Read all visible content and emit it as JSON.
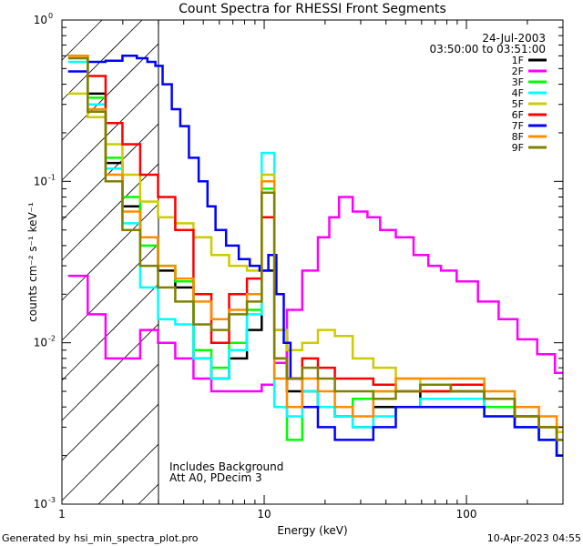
{
  "chart_data": {
    "type": "line",
    "title": "Count Spectra for RHESSI Front Segments",
    "xlabel": "Energy (keV)",
    "ylabel": "counts cm⁻² s⁻¹ keV⁻¹",
    "xscale": "log",
    "yscale": "log",
    "xlim": [
      1.0,
      300
    ],
    "ylim": [
      0.001,
      1.0
    ],
    "x_ticks": [
      {
        "value": 1,
        "label": "1"
      },
      {
        "value": 10,
        "label": "10"
      },
      {
        "value": 100,
        "label": "100"
      }
    ],
    "y_ticks": [
      {
        "value": 0.001,
        "mant": "10",
        "exp": "-3"
      },
      {
        "value": 0.01,
        "mant": "10",
        "exp": "-2"
      },
      {
        "value": 0.1,
        "mant": "10",
        "exp": "-1"
      },
      {
        "value": 1.0,
        "mant": "10",
        "exp": "0"
      }
    ],
    "shaded_region": {
      "x_from": 1.0,
      "x_to": 3.0,
      "style": "diagonal-hatch"
    },
    "legend_position": "top-right",
    "date": "24-Jul-2003",
    "time_range": "03:50:00 to 03:51:00",
    "annotations": [
      "Includes Background",
      "Att A0, PDecim 3"
    ],
    "series": [
      {
        "name": "1F",
        "color": "#000000",
        "x": [
          1.2,
          1.5,
          1.8,
          2.2,
          2.7,
          3.3,
          4.0,
          5.0,
          6.0,
          7.5,
          9.0,
          10.5,
          12.0,
          14.0,
          17.0,
          20.0,
          25.0,
          30.0,
          40.0,
          50.0,
          70.0,
          100.0,
          150.0,
          200.0,
          260.0,
          300.0
        ],
        "y": [
          0.6,
          0.35,
          0.13,
          0.07,
          0.045,
          0.028,
          0.022,
          0.008,
          0.006,
          0.008,
          0.012,
          0.028,
          0.012,
          0.005,
          0.005,
          0.004,
          0.0035,
          0.003,
          0.004,
          0.004,
          0.005,
          0.005,
          0.004,
          0.003,
          0.0025,
          0.002
        ]
      },
      {
        "name": "2F",
        "color": "#ff00ff",
        "x": [
          1.2,
          1.5,
          1.8,
          2.2,
          2.7,
          3.3,
          4.0,
          5.0,
          6.0,
          7.5,
          9.0,
          10.5,
          12.0,
          14.0,
          17.0,
          20.0,
          22.0,
          25.0,
          30.0,
          35.0,
          40.0,
          50.0,
          60.0,
          70.0,
          80.0,
          100.0,
          130.0,
          160.0,
          200.0,
          250.0,
          300.0
        ],
        "y": [
          0.026,
          0.015,
          0.008,
          0.008,
          0.012,
          0.01,
          0.008,
          0.006,
          0.005,
          0.005,
          0.005,
          0.0055,
          0.0075,
          0.016,
          0.028,
          0.045,
          0.06,
          0.08,
          0.065,
          0.06,
          0.05,
          0.045,
          0.035,
          0.03,
          0.028,
          0.024,
          0.018,
          0.014,
          0.0105,
          0.0085,
          0.0065
        ]
      },
      {
        "name": "3F",
        "color": "#00ff00",
        "x": [
          1.2,
          1.5,
          1.8,
          2.2,
          2.7,
          3.3,
          4.0,
          5.0,
          6.0,
          7.5,
          9.0,
          10.5,
          12.0,
          14.0,
          17.0,
          20.0,
          25.0,
          30.0,
          40.0,
          50.0,
          70.0,
          100.0,
          150.0,
          200.0,
          260.0,
          300.0
        ],
        "y": [
          0.6,
          0.33,
          0.14,
          0.08,
          0.04,
          0.03,
          0.024,
          0.009,
          0.007,
          0.01,
          0.016,
          0.09,
          0.004,
          0.0025,
          0.004,
          0.004,
          0.0035,
          0.0045,
          0.005,
          0.005,
          0.0055,
          0.0055,
          0.004,
          0.0035,
          0.003,
          0.0025
        ]
      },
      {
        "name": "4F",
        "color": "#00ffff",
        "x": [
          1.2,
          1.5,
          1.8,
          2.2,
          2.7,
          3.3,
          4.0,
          5.0,
          6.0,
          7.5,
          9.0,
          10.5,
          12.0,
          14.0,
          17.0,
          20.0,
          25.0,
          30.0,
          40.0,
          50.0,
          70.0,
          100.0,
          150.0,
          200.0,
          260.0,
          300.0
        ],
        "y": [
          0.55,
          0.3,
          0.12,
          0.055,
          0.022,
          0.014,
          0.013,
          0.008,
          0.006,
          0.009,
          0.015,
          0.15,
          0.004,
          0.0035,
          0.005,
          0.004,
          0.0035,
          0.003,
          0.0035,
          0.004,
          0.0045,
          0.0045,
          0.0035,
          0.003,
          0.0025,
          0.002
        ]
      },
      {
        "name": "5F",
        "color": "#cccc00",
        "x": [
          1.2,
          1.5,
          1.8,
          2.2,
          2.7,
          3.3,
          4.0,
          5.0,
          6.0,
          7.5,
          9.0,
          10.5,
          12.0,
          14.0,
          17.0,
          20.0,
          25.0,
          30.0,
          40.0,
          50.0,
          70.0,
          100.0,
          150.0,
          200.0,
          260.0,
          300.0
        ],
        "y": [
          0.35,
          0.25,
          0.17,
          0.11,
          0.075,
          0.06,
          0.055,
          0.045,
          0.035,
          0.03,
          0.028,
          0.11,
          0.012,
          0.009,
          0.01,
          0.012,
          0.011,
          0.008,
          0.007,
          0.006,
          0.005,
          0.0055,
          0.0045,
          0.0035,
          0.003,
          0.0028
        ]
      },
      {
        "name": "6F",
        "color": "#ff0000",
        "x": [
          1.2,
          1.5,
          1.8,
          2.2,
          2.7,
          3.3,
          4.0,
          5.0,
          6.0,
          7.5,
          9.0,
          10.5,
          12.0,
          14.0,
          17.0,
          20.0,
          25.0,
          30.0,
          40.0,
          50.0,
          70.0,
          100.0,
          150.0,
          200.0,
          260.0,
          300.0
        ],
        "y": [
          0.6,
          0.45,
          0.23,
          0.17,
          0.11,
          0.08,
          0.05,
          0.02,
          0.01,
          0.02,
          0.025,
          0.06,
          0.008,
          0.006,
          0.008,
          0.007,
          0.006,
          0.006,
          0.0055,
          0.005,
          0.005,
          0.0055,
          0.0045,
          0.0035,
          0.003,
          0.0025
        ]
      },
      {
        "name": "7F",
        "color": "#0000ff",
        "x": [
          1.2,
          1.5,
          1.8,
          2.2,
          2.5,
          2.8,
          3.0,
          3.3,
          3.7,
          4.0,
          4.5,
          5.0,
          5.5,
          6.0,
          7.0,
          8.0,
          9.0,
          10.0,
          11.0,
          12.0,
          13.0,
          14.0,
          17.0,
          20.0,
          25.0,
          30.0,
          40.0,
          50.0,
          70.0,
          100.0,
          150.0,
          200.0,
          260.0,
          300.0
        ],
        "y": [
          0.48,
          0.55,
          0.56,
          0.6,
          0.58,
          0.55,
          0.52,
          0.4,
          0.28,
          0.22,
          0.14,
          0.1,
          0.07,
          0.05,
          0.04,
          0.033,
          0.03,
          0.028,
          0.035,
          0.02,
          0.01,
          0.006,
          0.004,
          0.003,
          0.0025,
          0.0025,
          0.003,
          0.004,
          0.004,
          0.004,
          0.0035,
          0.003,
          0.0025,
          0.002
        ]
      },
      {
        "name": "8F",
        "color": "#ff8c00",
        "x": [
          1.2,
          1.5,
          1.8,
          2.2,
          2.7,
          3.3,
          4.0,
          5.0,
          6.0,
          7.5,
          9.0,
          10.5,
          12.0,
          14.0,
          17.0,
          20.0,
          25.0,
          30.0,
          40.0,
          50.0,
          70.0,
          100.0,
          150.0,
          200.0,
          260.0,
          300.0
        ],
        "y": [
          0.6,
          0.28,
          0.11,
          0.065,
          0.045,
          0.03,
          0.025,
          0.018,
          0.014,
          0.016,
          0.02,
          0.1,
          0.006,
          0.004,
          0.006,
          0.005,
          0.004,
          0.0035,
          0.005,
          0.006,
          0.006,
          0.006,
          0.005,
          0.004,
          0.0035,
          0.003
        ]
      },
      {
        "name": "9F",
        "color": "#808000",
        "x": [
          1.2,
          1.5,
          1.8,
          2.2,
          2.7,
          3.3,
          4.0,
          5.0,
          6.0,
          7.5,
          9.0,
          10.5,
          12.0,
          14.0,
          17.0,
          20.0,
          25.0,
          30.0,
          40.0,
          50.0,
          70.0,
          100.0,
          150.0,
          200.0,
          260.0,
          300.0
        ],
        "y": [
          0.58,
          0.27,
          0.1,
          0.05,
          0.03,
          0.022,
          0.018,
          0.013,
          0.012,
          0.015,
          0.018,
          0.085,
          0.008,
          0.006,
          0.007,
          0.006,
          0.005,
          0.005,
          0.0045,
          0.005,
          0.0055,
          0.005,
          0.0045,
          0.0035,
          0.003,
          0.0025
        ]
      }
    ]
  },
  "footer": {
    "left": "Generated by hsi_min_spectra_plot.pro",
    "right": "10-Apr-2023 04:55"
  }
}
